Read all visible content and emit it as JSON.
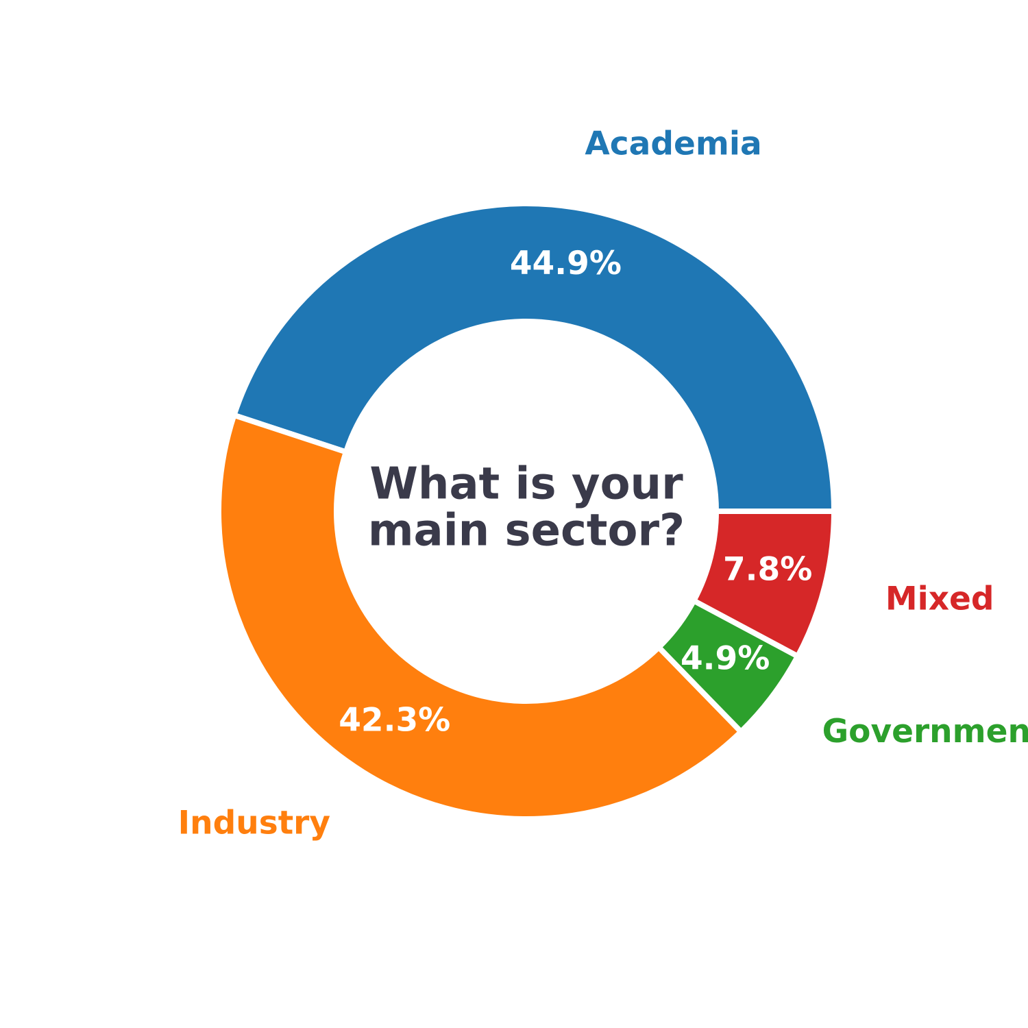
{
  "chart_data": {
    "type": "pie",
    "subtype": "donut",
    "title": "What is your main sector?",
    "title_lines": [
      "What is your",
      "main sector?"
    ],
    "legend": false,
    "slices": [
      {
        "label": "Academia",
        "value": 44.9,
        "value_label": "44.9%",
        "color": "#1f77b4"
      },
      {
        "label": "Industry",
        "value": 42.3,
        "value_label": "42.3%",
        "color": "#ff7f0e"
      },
      {
        "label": "Government",
        "value": 4.9,
        "value_label": "4.9%",
        "color": "#2ca02c"
      },
      {
        "label": "Mixed",
        "value": 7.8,
        "value_label": "7.8%",
        "color": "#d62728"
      }
    ]
  }
}
